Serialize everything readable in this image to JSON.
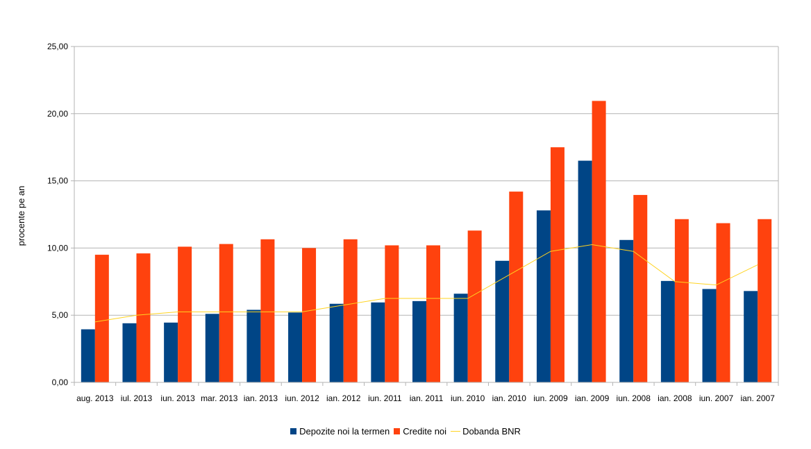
{
  "chart_data": {
    "type": "bar",
    "title": "",
    "xlabel": "",
    "ylabel": "procente pe an",
    "ylim": [
      0,
      25
    ],
    "yticks": [
      "0,00",
      "5,00",
      "10,00",
      "15,00",
      "20,00",
      "25,00"
    ],
    "grid": true,
    "legend_position": "bottom",
    "categories": [
      "aug. 2013",
      "iul. 2013",
      "iun. 2013",
      "mar. 2013",
      "ian. 2013",
      "iun. 2012",
      "ian. 2012",
      "iun. 2011",
      "ian. 2011",
      "iun. 2010",
      "ian. 2010",
      "iun. 2009",
      "ian. 2009",
      "iun. 2008",
      "ian. 2008",
      "iun. 2007",
      "ian. 2007"
    ],
    "series": [
      {
        "name": "Depozite noi la termen",
        "type": "bar",
        "color": "#004586",
        "values": [
          3.95,
          4.4,
          4.45,
          5.1,
          5.4,
          5.2,
          5.85,
          5.95,
          6.05,
          6.6,
          9.05,
          12.8,
          16.5,
          10.6,
          7.55,
          6.95,
          6.8
        ]
      },
      {
        "name": "Credite noi",
        "type": "bar",
        "color": "#ff420e",
        "values": [
          9.5,
          9.6,
          10.1,
          10.3,
          10.65,
          10.0,
          10.65,
          10.2,
          10.2,
          11.3,
          14.2,
          17.5,
          20.95,
          13.95,
          12.15,
          11.85,
          12.15
        ]
      },
      {
        "name": "Dobanda BNR",
        "type": "line",
        "color": "#ffd320",
        "values": [
          4.5,
          5.0,
          5.25,
          5.25,
          5.25,
          5.25,
          5.75,
          6.25,
          6.25,
          6.25,
          8.0,
          9.75,
          10.25,
          9.75,
          7.5,
          7.25,
          8.75
        ]
      }
    ]
  }
}
